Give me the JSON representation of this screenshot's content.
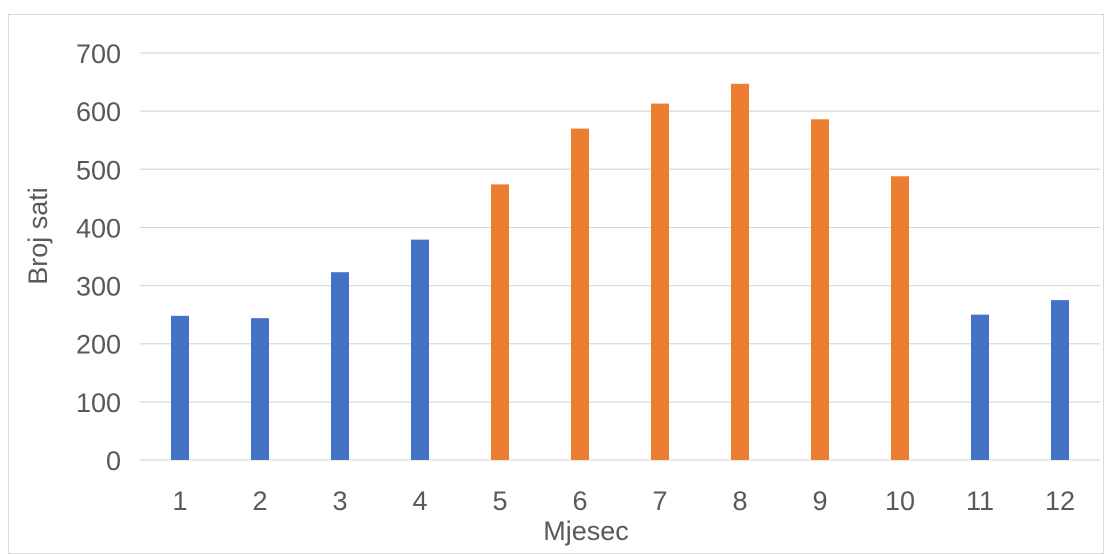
{
  "chart_data": {
    "type": "bar",
    "title": "",
    "xlabel": "Mjesec",
    "ylabel": "Broj sati",
    "categories": [
      "1",
      "2",
      "3",
      "4",
      "5",
      "6",
      "7",
      "8",
      "9",
      "10",
      "11",
      "12"
    ],
    "values": [
      248,
      244,
      323,
      379,
      474,
      570,
      613,
      647,
      586,
      488,
      250,
      275
    ],
    "bar_colors": [
      "#4472C4",
      "#4472C4",
      "#4472C4",
      "#4472C4",
      "#ED7D31",
      "#ED7D31",
      "#ED7D31",
      "#ED7D31",
      "#ED7D31",
      "#ED7D31",
      "#4472C4",
      "#4472C4"
    ],
    "ylim": [
      0,
      700
    ],
    "yticks": [
      0,
      100,
      200,
      300,
      400,
      500,
      600,
      700
    ],
    "grid": true,
    "legend": "none"
  },
  "colors": {
    "cold_months": "#4472C4",
    "warm_months": "#ED7D31",
    "gridline": "#d9d9d9",
    "text": "#595959"
  }
}
